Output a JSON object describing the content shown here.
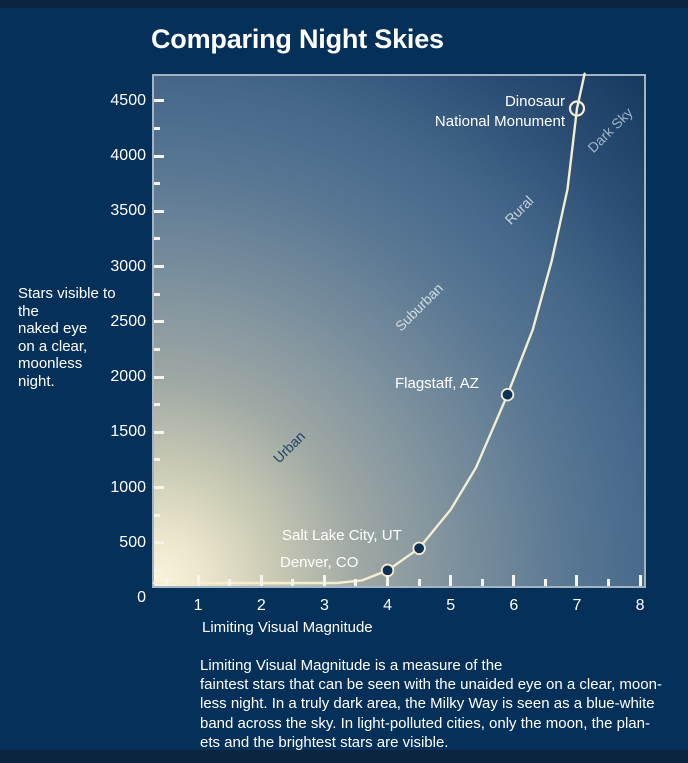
{
  "header": {
    "title": "Comparing Night Skies"
  },
  "y_axis_note_lines": [
    "Stars visible to",
    "the",
    "naked eye",
    "on a clear,",
    "moonless",
    "night."
  ],
  "x_axis_title": "Limiting Visual Magnitude",
  "caption_lines": [
    "Limiting Visual Magnitude is a measure of the",
    "faintest stars that can be seen with the unaided eye on a clear, moon-",
    "less night. In a truly dark area, the Milky Way is seen as a blue-white",
    "band across the sky. In light-polluted cities, only the moon, the plan-",
    "ets and the brightest stars are visible."
  ],
  "colors": {
    "page_background": "#05305a",
    "edge_bands": "#0b2440",
    "plot_border": "#a4b4c2",
    "curve": "#f2eecf",
    "marker_fill": "#0e3054",
    "tick": "#f6f4ea",
    "text": "#ffffff",
    "gradient_glow": "#faf6dc",
    "gradient_dark": "#16395e"
  },
  "chart_data": {
    "type": "line",
    "title": "Comparing Night Skies",
    "xlabel": "Limiting Visual Magnitude",
    "ylabel": "Stars visible to the naked eye on a clear, moonless night",
    "xlim": [
      0.3,
      8.1
    ],
    "ylim": [
      0,
      4750
    ],
    "grid": false,
    "legend": "none",
    "x_ticks": [
      {
        "v": 0.5
      },
      {
        "v": 1,
        "label": "1"
      },
      {
        "v": 1.5
      },
      {
        "v": 2,
        "label": "2"
      },
      {
        "v": 2.5
      },
      {
        "v": 3,
        "label": "3"
      },
      {
        "v": 3.5
      },
      {
        "v": 4,
        "label": "4"
      },
      {
        "v": 4.5
      },
      {
        "v": 5,
        "label": "5"
      },
      {
        "v": 5.5
      },
      {
        "v": 6,
        "label": "6"
      },
      {
        "v": 6.5
      },
      {
        "v": 7,
        "label": "7"
      },
      {
        "v": 7.5
      },
      {
        "v": 8,
        "label": "8"
      }
    ],
    "y_ticks": [
      {
        "v": 0,
        "label": "0"
      },
      {
        "v": 250
      },
      {
        "v": 500,
        "label": "500"
      },
      {
        "v": 750
      },
      {
        "v": 1000,
        "label": "1000"
      },
      {
        "v": 1250
      },
      {
        "v": 1500,
        "label": "1500"
      },
      {
        "v": 1750
      },
      {
        "v": 2000,
        "label": "2000"
      },
      {
        "v": 2250
      },
      {
        "v": 2500,
        "label": "2500"
      },
      {
        "v": 2750
      },
      {
        "v": 3000,
        "label": "3000"
      },
      {
        "v": 3250
      },
      {
        "v": 3500,
        "label": "3500"
      },
      {
        "v": 3750
      },
      {
        "v": 4000,
        "label": "4000"
      },
      {
        "v": 4250
      },
      {
        "v": 4500,
        "label": "4500"
      }
    ],
    "curve_points": [
      [
        0.3,
        1
      ],
      [
        0.8,
        3
      ],
      [
        1.3,
        6
      ],
      [
        1.8,
        12
      ],
      [
        2.3,
        25
      ],
      [
        2.8,
        52
      ],
      [
        3.2,
        95
      ],
      [
        3.6,
        160
      ],
      [
        4.0,
        250
      ],
      [
        4.5,
        450
      ],
      [
        5.0,
        800
      ],
      [
        5.4,
        1180
      ],
      [
        5.9,
        1840
      ],
      [
        6.3,
        2430
      ],
      [
        6.6,
        3050
      ],
      [
        6.85,
        3700
      ],
      [
        7.0,
        4430
      ],
      [
        7.12,
        4745
      ]
    ],
    "annotations": [
      {
        "id": "denver",
        "label": "Denver, CO",
        "x": 4.0,
        "y": 250,
        "marker": "filled"
      },
      {
        "id": "slc",
        "label": "Salt Lake City, UT",
        "x": 4.5,
        "y": 450,
        "marker": "filled"
      },
      {
        "id": "flagstaff",
        "label": "Flagstaff, AZ",
        "x": 5.9,
        "y": 1840,
        "marker": "filled"
      },
      {
        "id": "dinosaur",
        "label_lines": [
          "Dinosaur",
          "National Monument"
        ],
        "x": 7.0,
        "y": 4430,
        "marker": "open"
      }
    ],
    "zones": [
      {
        "label": "Urban",
        "x": 2.44,
        "y": 1366,
        "color": "#1d4166"
      },
      {
        "label": "Suburban",
        "x": 4.5,
        "y": 2633,
        "color": "#d3dce2"
      },
      {
        "label": "Rural",
        "x": 6.08,
        "y": 3511,
        "color": "#c6d3dd"
      },
      {
        "label": "Dark Sky",
        "x": 7.52,
        "y": 4235,
        "color": "#9fb5c7"
      }
    ]
  }
}
